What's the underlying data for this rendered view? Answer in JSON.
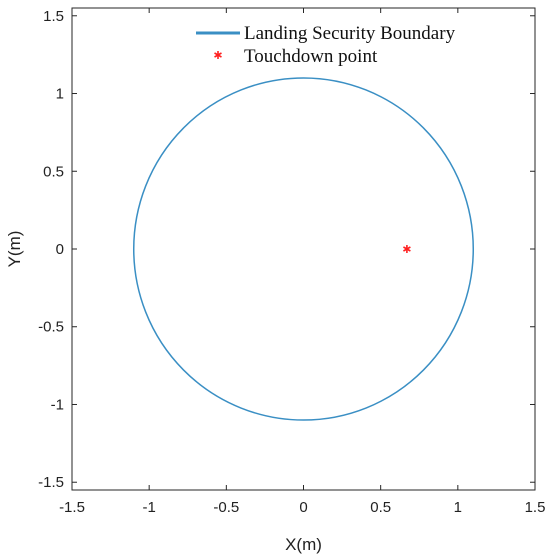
{
  "chart_data": {
    "type": "scatter",
    "xlabel": "X(m)",
    "ylabel": "Y(m)",
    "xlim": [
      -1.5,
      1.5
    ],
    "ylim": [
      -1.55,
      1.55
    ],
    "xticks": [
      "-1.5",
      "-1",
      "-0.5",
      "0",
      "0.5",
      "1",
      "1.5"
    ],
    "yticks": [
      "-1.5",
      "-1",
      "-0.5",
      "0",
      "0.5",
      "1",
      "1.5"
    ],
    "grid": false,
    "legend_position": "top-right",
    "series": [
      {
        "name": "Landing Security Boundary",
        "kind": "circle",
        "center": [
          0,
          0
        ],
        "radius": 1.1,
        "color": "#3a8fc4"
      },
      {
        "name": "Touchdown point",
        "kind": "marker",
        "marker": "*",
        "x": 0.67,
        "y": 0.0,
        "color": "#ff2020"
      }
    ]
  }
}
